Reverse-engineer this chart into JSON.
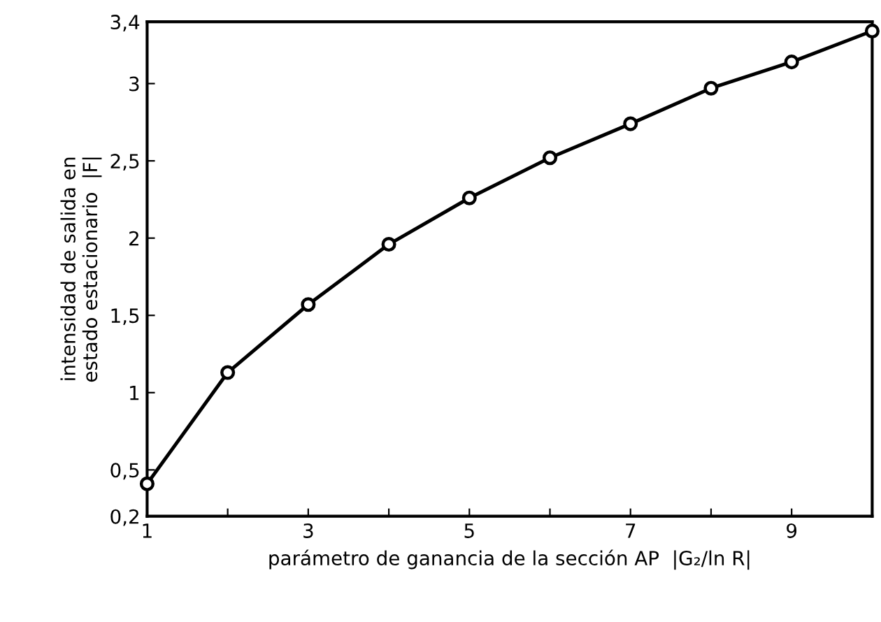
{
  "chart_data": {
    "type": "line",
    "xlabel": "parámetro de ganancia de la sección AP  |G₂/ln R|",
    "ylabel": "intensidad de salida en\nestado estacionario  |F|",
    "x": [
      1,
      2,
      3,
      4,
      5,
      6,
      7,
      8,
      9,
      10
    ],
    "series": [
      {
        "color": "#000000",
        "values": [
          0.41,
          1.13,
          1.57,
          1.96,
          2.26,
          2.52,
          2.74,
          2.97,
          3.14,
          3.34
        ]
      }
    ],
    "xlim": [
      1,
      10
    ],
    "xticks": [
      1,
      {
        "value": 2,
        "label": null
      },
      3,
      {
        "value": 4,
        "label": null
      },
      5,
      {
        "value": 6,
        "label": null
      },
      7,
      {
        "value": 8,
        "label": null
      },
      9,
      {
        "value": 10,
        "label": null
      }
    ],
    "ylim": [
      0.2,
      3.4
    ],
    "yticks": [
      {
        "value": 0.2,
        "label": "0,2"
      },
      {
        "value": 0.5,
        "label": "0,5"
      },
      1,
      {
        "value": 1.5,
        "label": "1,5"
      },
      2,
      {
        "value": 2.5,
        "label": "2,5"
      },
      3,
      {
        "value": 3.4,
        "label": "3,4"
      }
    ],
    "grid": false,
    "legend": false,
    "marker": "circle",
    "line_style": "solid"
  }
}
